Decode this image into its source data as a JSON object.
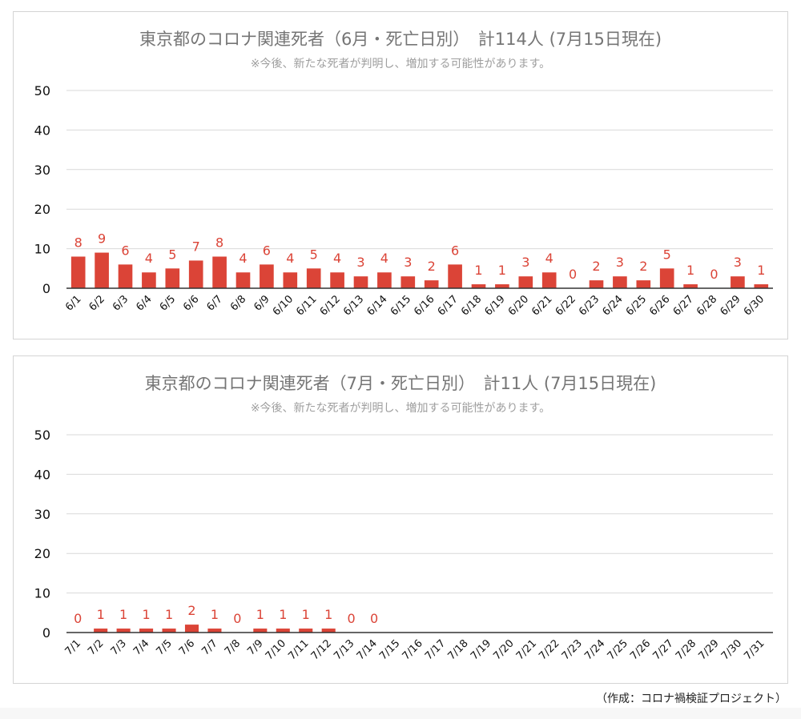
{
  "colors": {
    "bar": "#db4437",
    "label": "#db4437",
    "grid": "#d9d9d9",
    "axis": "#333333",
    "tick": "#111111"
  },
  "credit": "（作成：コロナ禍検証プロジェクト）",
  "chart_data": [
    {
      "type": "bar",
      "title": "東京都のコロナ関連死者（6月・死亡日別）　計114人 (7月15日現在)",
      "subtitle": "※今後、新たな死者が判明し、増加する可能性があります。",
      "ylim": [
        0,
        50
      ],
      "yticks": [
        0,
        10,
        20,
        30,
        40,
        50
      ],
      "grid": true,
      "categories": [
        "6/1",
        "6/2",
        "6/3",
        "6/4",
        "6/5",
        "6/6",
        "6/7",
        "6/8",
        "6/9",
        "6/10",
        "6/11",
        "6/12",
        "6/13",
        "6/14",
        "6/15",
        "6/16",
        "6/17",
        "6/18",
        "6/19",
        "6/20",
        "6/21",
        "6/22",
        "6/23",
        "6/24",
        "6/25",
        "6/26",
        "6/27",
        "6/28",
        "6/29",
        "6/30"
      ],
      "values": [
        8,
        9,
        6,
        4,
        5,
        7,
        8,
        4,
        6,
        4,
        5,
        4,
        3,
        4,
        3,
        2,
        6,
        1,
        1,
        3,
        4,
        0,
        2,
        3,
        2,
        5,
        1,
        0,
        3,
        1
      ],
      "labels": [
        "8",
        "9",
        "6",
        "4",
        "5",
        "7",
        "8",
        "4",
        "6",
        "4",
        "5",
        "4",
        "3",
        "4",
        "3",
        "2",
        "6",
        "1",
        "1",
        "3",
        "4",
        "0",
        "2",
        "3",
        "2",
        "5",
        "1",
        "0",
        "3",
        "1"
      ]
    },
    {
      "type": "bar",
      "title": "東京都のコロナ関連死者（7月・死亡日別）　計11人 (7月15日現在)",
      "subtitle": "※今後、新たな死者が判明し、増加する可能性があります。",
      "ylim": [
        0,
        50
      ],
      "yticks": [
        0,
        10,
        20,
        30,
        40,
        50
      ],
      "grid": true,
      "categories": [
        "7/1",
        "7/2",
        "7/3",
        "7/4",
        "7/5",
        "7/6",
        "7/7",
        "7/8",
        "7/9",
        "7/10",
        "7/11",
        "7/12",
        "7/13",
        "7/14",
        "7/15",
        "7/16",
        "7/17",
        "7/18",
        "7/19",
        "7/20",
        "7/21",
        "7/22",
        "7/23",
        "7/24",
        "7/25",
        "7/26",
        "7/27",
        "7/28",
        "7/29",
        "7/30",
        "7/31"
      ],
      "values": [
        0,
        1,
        1,
        1,
        1,
        2,
        1,
        0,
        1,
        1,
        1,
        1,
        0,
        0,
        null,
        null,
        null,
        null,
        null,
        null,
        null,
        null,
        null,
        null,
        null,
        null,
        null,
        null,
        null,
        null,
        null
      ],
      "labels": [
        "0",
        "1",
        "1",
        "1",
        "1",
        "2",
        "1",
        "0",
        "1",
        "1",
        "1",
        "1",
        "0",
        "0"
      ]
    }
  ]
}
